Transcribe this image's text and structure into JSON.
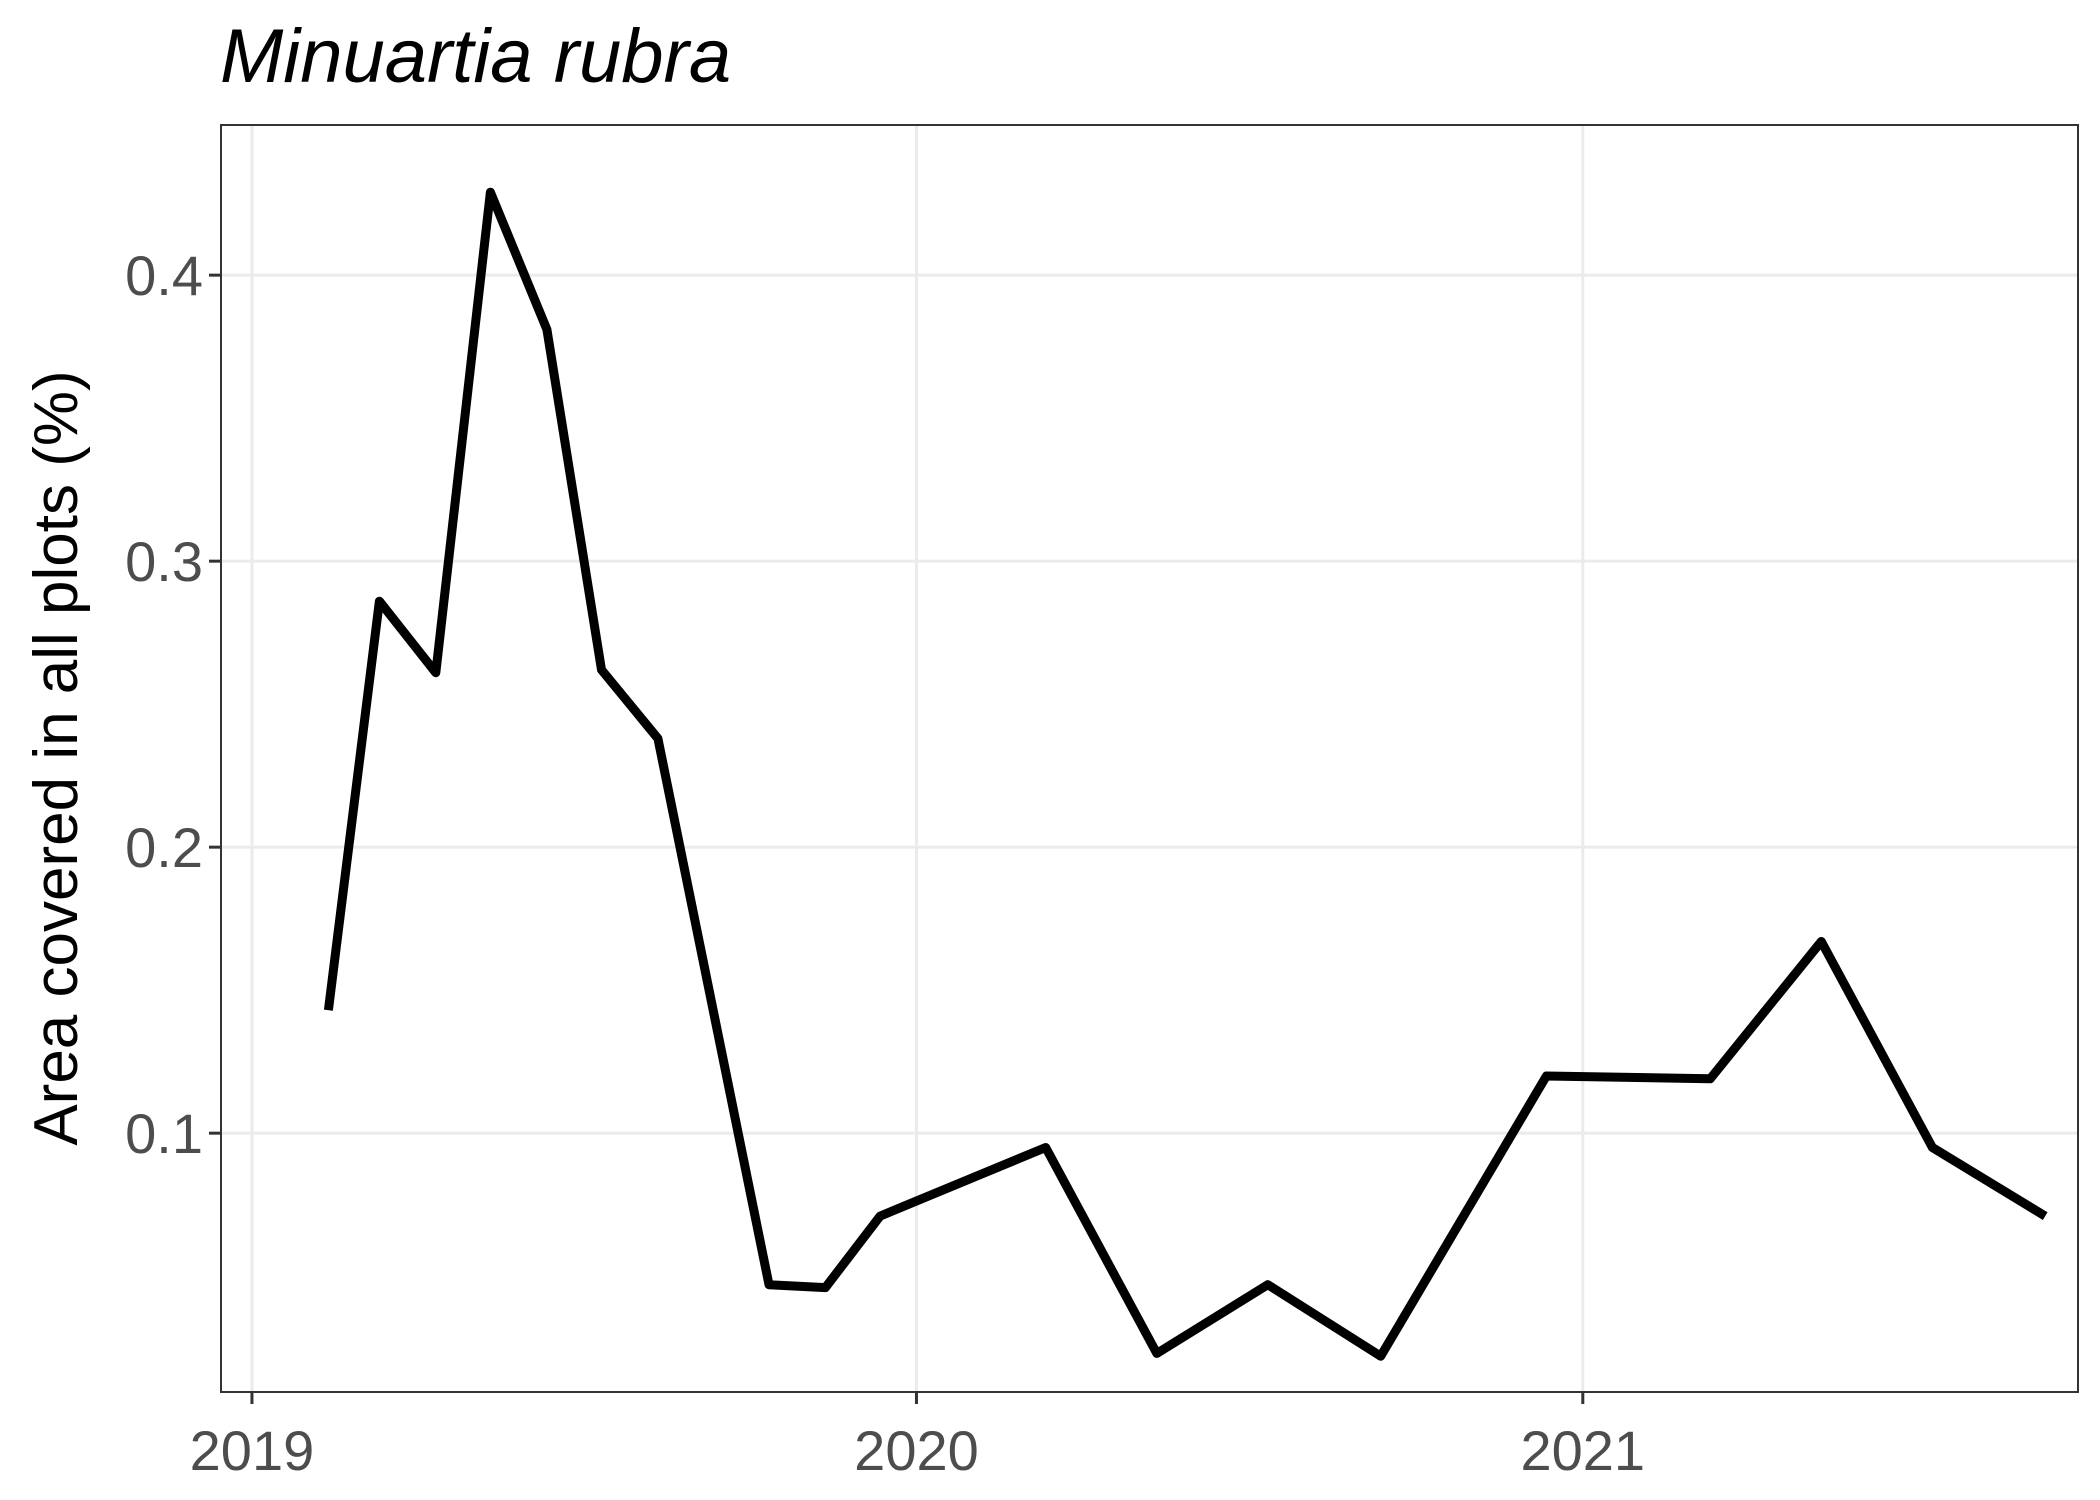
{
  "chart_data": {
    "type": "line",
    "title": "Minuartia rubra",
    "xlabel": "",
    "ylabel": "Area covered in all plots (%)",
    "xlim": [
      "2018-12-15",
      "2021-09-30"
    ],
    "ylim": [
      0.0095,
      0.4525
    ],
    "x_ticks": [
      {
        "date": "2019-01-01",
        "label": "2019"
      },
      {
        "date": "2020-01-01",
        "label": "2020"
      },
      {
        "date": "2021-01-01",
        "label": "2021"
      }
    ],
    "y_ticks": [
      {
        "value": 0.1,
        "label": "0.1"
      },
      {
        "value": 0.2,
        "label": "0.2"
      },
      {
        "value": 0.3,
        "label": "0.3"
      },
      {
        "value": 0.4,
        "label": "0.4"
      }
    ],
    "grid": true,
    "legend": "none",
    "series": [
      {
        "color": "#000000",
        "points": [
          {
            "x": "2019-02-12",
            "y": 0.143
          },
          {
            "x": "2019-03-12",
            "y": 0.286
          },
          {
            "x": "2019-04-12",
            "y": 0.261
          },
          {
            "x": "2019-05-12",
            "y": 0.429
          },
          {
            "x": "2019-06-12",
            "y": 0.381
          },
          {
            "x": "2019-07-12",
            "y": 0.262
          },
          {
            "x": "2019-08-12",
            "y": 0.238
          },
          {
            "x": "2019-10-12",
            "y": 0.047
          },
          {
            "x": "2019-11-12",
            "y": 0.046
          },
          {
            "x": "2019-12-12",
            "y": 0.071
          },
          {
            "x": "2020-03-12",
            "y": 0.095
          },
          {
            "x": "2020-05-12",
            "y": 0.023
          },
          {
            "x": "2020-07-12",
            "y": 0.047
          },
          {
            "x": "2020-09-12",
            "y": 0.022
          },
          {
            "x": "2020-12-12",
            "y": 0.12
          },
          {
            "x": "2021-03-12",
            "y": 0.119
          },
          {
            "x": "2021-05-12",
            "y": 0.167
          },
          {
            "x": "2021-07-12",
            "y": 0.095
          },
          {
            "x": "2021-09-12",
            "y": 0.071
          }
        ]
      }
    ]
  }
}
